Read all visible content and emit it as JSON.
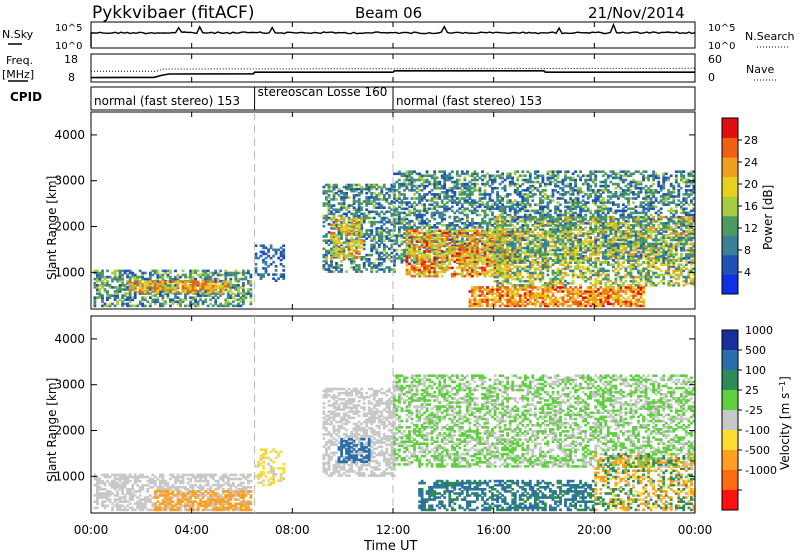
{
  "header": {
    "title_left": "Pykkvibaer (fitACF)",
    "title_center": "Beam 06",
    "title_right": "21/Nov/2014"
  },
  "nsky_panel": {
    "label": "N.Sky",
    "y_ticks_left": [
      "10^5",
      "10^0"
    ],
    "y_ticks_right": [
      "10^5",
      "10^0"
    ],
    "right_label": "N.Search"
  },
  "freq_panel": {
    "label_line1": "Freq.",
    "label_line2": "[MHz]",
    "y_ticks_left": [
      "18",
      "8"
    ],
    "y_ticks_right": [
      "60",
      "0"
    ],
    "right_label": "Nave",
    "freq_series": [
      {
        "t": 0.0,
        "f": 8.2
      },
      {
        "t": 2.5,
        "f": 8.3
      },
      {
        "t": 2.8,
        "f": 9.3
      },
      {
        "t": 3.1,
        "f": 10.0
      },
      {
        "t": 6.45,
        "f": 10.1
      },
      {
        "t": 6.5,
        "f": 10.9
      },
      {
        "t": 12.0,
        "f": 10.9
      },
      {
        "t": 12.05,
        "f": 11.6
      },
      {
        "t": 18.0,
        "f": 11.6
      },
      {
        "t": 18.05,
        "f": 10.9
      },
      {
        "t": 24.0,
        "f": 10.9
      }
    ],
    "nave_series": [
      {
        "t": 0.0,
        "n": 24
      },
      {
        "t": 2.6,
        "n": 24
      },
      {
        "t": 2.9,
        "n": 30
      },
      {
        "t": 24.0,
        "n": 32
      }
    ]
  },
  "cpid": {
    "label": "CPID",
    "segments": [
      {
        "start": 0,
        "end": 6.5,
        "label": "normal (fast stereo) 153"
      },
      {
        "start": 6.5,
        "end": 12,
        "label": "stereoscan Losse 160"
      },
      {
        "start": 12,
        "end": 24,
        "label": "normal (fast stereo) 153"
      }
    ]
  },
  "x_axis": {
    "label": "Time UT",
    "ticks": [
      "00:00",
      "04:00",
      "08:00",
      "12:00",
      "16:00",
      "20:00",
      "00:00"
    ],
    "tick_values": [
      0,
      4,
      8,
      12,
      16,
      20,
      24
    ],
    "range": [
      0,
      24
    ]
  },
  "dashed_time_markers": [
    6.5,
    12
  ],
  "colors": {
    "power": [
      "#1030e8",
      "#2050b8",
      "#3a7f95",
      "#4b9a60",
      "#a6cc40",
      "#e8d020",
      "#f0a020",
      "#f06010",
      "#e01010"
    ],
    "velocity": [
      "#ff1010",
      "#ff6a10",
      "#ffa020",
      "#ffdd30",
      "#c8c8c8",
      "#5fcf3f",
      "#2e8b57",
      "#2b6faa",
      "#1a2f9a"
    ]
  },
  "chart_data": [
    {
      "type": "heatmap",
      "panel": "power",
      "ylabel": "Slant Range [km]",
      "xlabel": "",
      "ylim": [
        200,
        4500
      ],
      "xlim": [
        0,
        24
      ],
      "y_ticks": [
        1000,
        2000,
        3000,
        4000
      ],
      "colorbar": {
        "label": "Power [dB]",
        "range": [
          0,
          32
        ],
        "ticks": [
          4,
          8,
          12,
          16,
          20,
          24,
          28
        ]
      },
      "regions": [
        {
          "t0": 0.1,
          "t1": 6.3,
          "r0": 250,
          "r1": 1050,
          "vmin": 4,
          "vmax": 18,
          "density": 0.55
        },
        {
          "t0": 1.5,
          "t1": 5.5,
          "r0": 550,
          "r1": 800,
          "vmin": 16,
          "vmax": 28,
          "density": 0.7
        },
        {
          "t0": 6.5,
          "t1": 7.6,
          "r0": 800,
          "r1": 1600,
          "vmin": 4,
          "vmax": 10,
          "density": 0.35
        },
        {
          "t0": 9.2,
          "t1": 12.0,
          "r0": 1000,
          "r1": 2900,
          "vmin": 4,
          "vmax": 16,
          "density": 0.5
        },
        {
          "t0": 9.5,
          "t1": 10.7,
          "r0": 1300,
          "r1": 2200,
          "vmin": 14,
          "vmax": 26,
          "density": 0.5
        },
        {
          "t0": 12.0,
          "t1": 24.0,
          "r0": 1200,
          "r1": 3200,
          "vmin": 4,
          "vmax": 16,
          "density": 0.5
        },
        {
          "t0": 12.5,
          "t1": 16.5,
          "r0": 900,
          "r1": 1900,
          "vmin": 14,
          "vmax": 30,
          "density": 0.65
        },
        {
          "t0": 15.0,
          "t1": 22.0,
          "r0": 250,
          "r1": 700,
          "vmin": 18,
          "vmax": 30,
          "density": 0.7
        },
        {
          "t0": 16.0,
          "t1": 24.0,
          "r0": 700,
          "r1": 2200,
          "vmin": 8,
          "vmax": 24,
          "density": 0.5
        }
      ]
    },
    {
      "type": "heatmap",
      "panel": "velocity",
      "ylabel": "Slant Range [km]",
      "xlabel": "Time UT",
      "ylim": [
        200,
        4500
      ],
      "xlim": [
        0,
        24
      ],
      "y_ticks": [
        1000,
        2000,
        3000,
        4000
      ],
      "colorbar": {
        "label": "Velocity [m s^-1]",
        "levels": [
          -1000,
          -500,
          -100,
          -25,
          25,
          100,
          500,
          1000
        ],
        "tick_labels": [
          "1000",
          "500",
          "100",
          "25",
          "-25",
          "-100",
          "-500",
          "-1000"
        ]
      },
      "regions": [
        {
          "t0": 0.1,
          "t1": 6.3,
          "r0": 250,
          "r1": 1050,
          "vmin": -25,
          "vmax": 25,
          "density": 0.55
        },
        {
          "t0": 2.5,
          "t1": 6.3,
          "r0": 250,
          "r1": 700,
          "vmin": -500,
          "vmax": -100,
          "density": 0.5
        },
        {
          "t0": 6.5,
          "t1": 7.6,
          "r0": 800,
          "r1": 1600,
          "vmin": -100,
          "vmax": 25,
          "density": 0.35
        },
        {
          "t0": 9.2,
          "t1": 12.0,
          "r0": 1000,
          "r1": 2900,
          "vmin": -25,
          "vmax": 25,
          "density": 0.55
        },
        {
          "t0": 9.8,
          "t1": 11.0,
          "r0": 1300,
          "r1": 1800,
          "vmin": 500,
          "vmax": 1000,
          "density": 0.55
        },
        {
          "t0": 12.0,
          "t1": 24.0,
          "r0": 1200,
          "r1": 3200,
          "vmin": -25,
          "vmax": 100,
          "density": 0.5
        },
        {
          "t0": 13.0,
          "t1": 20.0,
          "r0": 250,
          "r1": 900,
          "vmin": 100,
          "vmax": 1000,
          "density": 0.55
        },
        {
          "t0": 20.0,
          "t1": 24.0,
          "r0": 250,
          "r1": 1500,
          "vmin": -500,
          "vmax": 500,
          "density": 0.45
        }
      ]
    }
  ]
}
